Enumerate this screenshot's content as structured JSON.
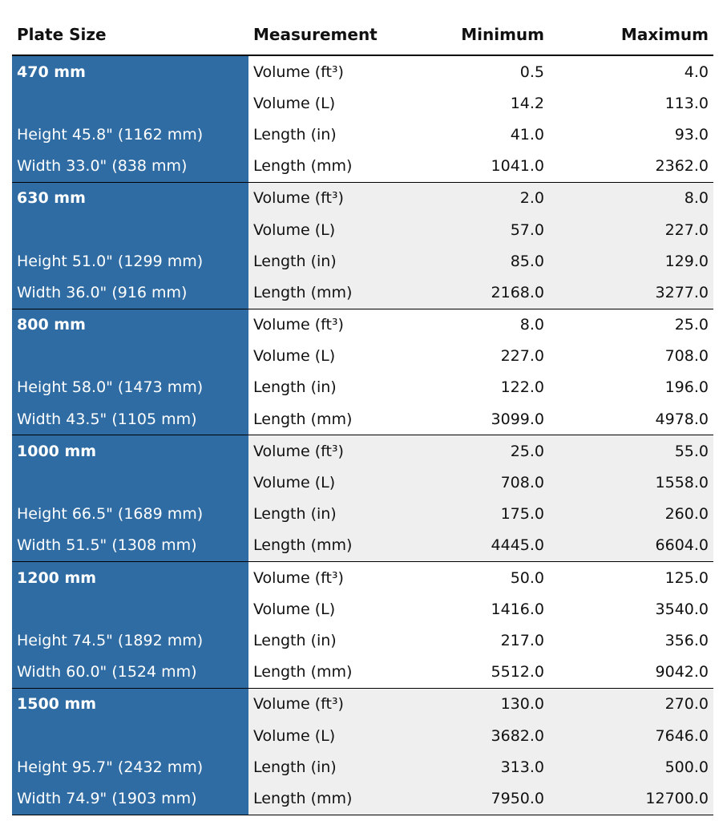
{
  "table": {
    "header": [
      "Plate Size",
      "Measurement",
      "Minimum",
      "Maximum"
    ],
    "groups": [
      {
        "plate": "470 mm",
        "height": "Height 45.8\" (1162 mm)",
        "width": "Width 33.0\" (838 mm)",
        "rows": [
          [
            "Volume (ft³)",
            "0.5",
            "4.0"
          ],
          [
            "Volume (L)",
            "14.2",
            "113.0"
          ],
          [
            "Length (in)",
            "41.0",
            "93.0"
          ],
          [
            "Length (mm)",
            "1041.0",
            "2362.0"
          ]
        ]
      },
      {
        "plate": "630 mm",
        "height": "Height 51.0\" (1299 mm)",
        "width": "Width 36.0\" (916 mm)",
        "rows": [
          [
            "Volume (ft³)",
            "2.0",
            "8.0"
          ],
          [
            "Volume (L)",
            "57.0",
            "227.0"
          ],
          [
            "Length (in)",
            "85.0",
            "129.0"
          ],
          [
            "Length (mm)",
            "2168.0",
            "3277.0"
          ]
        ]
      },
      {
        "plate": "800 mm",
        "height": "Height 58.0\" (1473 mm)",
        "width": "Width 43.5\" (1105 mm)",
        "rows": [
          [
            "Volume (ft³)",
            "8.0",
            "25.0"
          ],
          [
            "Volume (L)",
            "227.0",
            "708.0"
          ],
          [
            "Length (in)",
            "122.0",
            "196.0"
          ],
          [
            "Length (mm)",
            "3099.0",
            "4978.0"
          ]
        ]
      },
      {
        "plate": "1000 mm",
        "height": "Height 66.5\" (1689 mm)",
        "width": "Width 51.5\" (1308 mm)",
        "rows": [
          [
            "Volume (ft³)",
            "25.0",
            "55.0"
          ],
          [
            "Volume (L)",
            "708.0",
            "1558.0"
          ],
          [
            "Length (in)",
            "175.0",
            "260.0"
          ],
          [
            "Length (mm)",
            "4445.0",
            "6604.0"
          ]
        ]
      },
      {
        "plate": "1200 mm",
        "height": "Height 74.5\" (1892 mm)",
        "width": "Width 60.0\" (1524 mm)",
        "rows": [
          [
            "Volume (ft³)",
            "50.0",
            "125.0"
          ],
          [
            "Volume (L)",
            "1416.0",
            "3540.0"
          ],
          [
            "Length (in)",
            "217.0",
            "356.0"
          ],
          [
            "Length (mm)",
            "5512.0",
            "9042.0"
          ]
        ]
      },
      {
        "plate": "1500 mm",
        "height": "Height 95.7\" (2432 mm)",
        "width": "Width 74.9\" (1903 mm)",
        "rows": [
          [
            "Volume (ft³)",
            "130.0",
            "270.0"
          ],
          [
            "Volume (L)",
            "3682.0",
            "7646.0"
          ],
          [
            "Length (in)",
            "313.0",
            "500.0"
          ],
          [
            "Length (mm)",
            "7950.0",
            "12700.0"
          ]
        ]
      }
    ]
  }
}
